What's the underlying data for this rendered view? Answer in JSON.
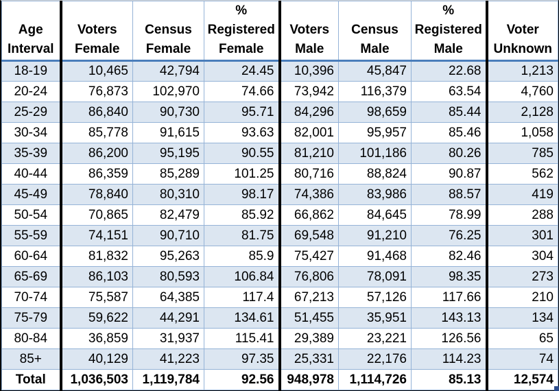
{
  "table": {
    "columns": [
      {
        "id": "age_interval",
        "label": "Age\nInterval"
      },
      {
        "id": "voters_female",
        "label": "Voters\nFemale"
      },
      {
        "id": "census_female",
        "label": "Census\nFemale"
      },
      {
        "id": "pct_registered_female",
        "label": "%\nRegistered\nFemale"
      },
      {
        "id": "voters_male",
        "label": "Voters\nMale"
      },
      {
        "id": "census_male",
        "label": "Census\nMale"
      },
      {
        "id": "pct_registered_male",
        "label": "%\nRegistered\nMale"
      },
      {
        "id": "voter_unknown",
        "label": "Voter\nUnknown"
      }
    ],
    "rows": [
      [
        "18-19",
        "10,465",
        "42,794",
        "24.45",
        "10,396",
        "45,847",
        "22.68",
        "1,213"
      ],
      [
        "20-24",
        "76,873",
        "102,970",
        "74.66",
        "73,942",
        "116,379",
        "63.54",
        "4,760"
      ],
      [
        "25-29",
        "86,840",
        "90,730",
        "95.71",
        "84,296",
        "98,659",
        "85.44",
        "2,128"
      ],
      [
        "30-34",
        "85,778",
        "91,615",
        "93.63",
        "82,001",
        "95,957",
        "85.46",
        "1,058"
      ],
      [
        "35-39",
        "86,200",
        "95,195",
        "90.55",
        "81,210",
        "101,186",
        "80.26",
        "785"
      ],
      [
        "40-44",
        "86,359",
        "85,289",
        "101.25",
        "80,716",
        "88,824",
        "90.87",
        "562"
      ],
      [
        "45-49",
        "78,840",
        "80,310",
        "98.17",
        "74,386",
        "83,986",
        "88.57",
        "419"
      ],
      [
        "50-54",
        "70,865",
        "82,479",
        "85.92",
        "66,862",
        "84,645",
        "78.99",
        "288"
      ],
      [
        "55-59",
        "74,151",
        "90,710",
        "81.75",
        "69,548",
        "91,210",
        "76.25",
        "301"
      ],
      [
        "60-64",
        "81,832",
        "95,263",
        "85.9",
        "75,427",
        "91,468",
        "82.46",
        "304"
      ],
      [
        "65-69",
        "86,103",
        "80,593",
        "106.84",
        "76,806",
        "78,091",
        "98.35",
        "273"
      ],
      [
        "70-74",
        "75,587",
        "64,385",
        "117.4",
        "67,213",
        "57,126",
        "117.66",
        "210"
      ],
      [
        "75-79",
        "59,622",
        "44,291",
        "134.61",
        "51,455",
        "35,951",
        "143.13",
        "134"
      ],
      [
        "80-84",
        "36,859",
        "31,937",
        "115.41",
        "29,389",
        "23,221",
        "126.56",
        "65"
      ],
      [
        "85+",
        "40,129",
        "41,223",
        "97.35",
        "25,331",
        "22,176",
        "114.23",
        "74"
      ]
    ],
    "total_row": [
      "Total",
      "1,036,503",
      "1,119,784",
      "92.56",
      "948,978",
      "1,114,726",
      "85.13",
      "12,574"
    ],
    "colors": {
      "band": "#dce6f1",
      "grid": "#95b3d7",
      "header_rule": "#4a7ebb",
      "frame": "#000000",
      "handle": "#2b4c8c"
    }
  }
}
